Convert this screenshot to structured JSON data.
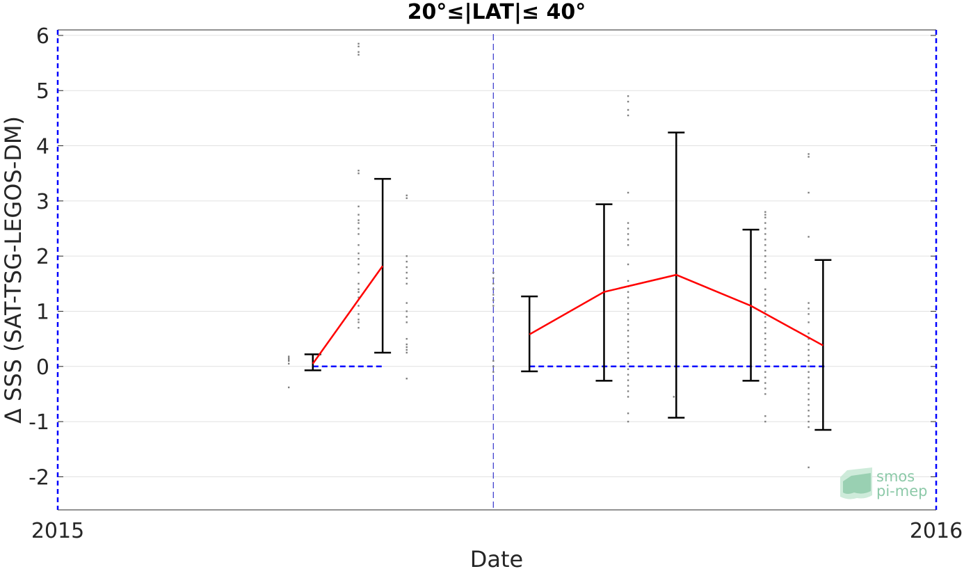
{
  "chart_data": {
    "type": "scatter",
    "title": "20°≤|LAT|≤ 40°",
    "xlabel": "Date",
    "ylabel": "Δ SSS (SAT-TSG-LEGOS-DM)",
    "xlim": [
      "2015-01-01",
      "2016-01-01"
    ],
    "ylim": [
      -2.6,
      6.1
    ],
    "x_ticks": [
      {
        "date": "2015-01-01",
        "label": "2015"
      },
      {
        "date": "2016-01-01",
        "label": "2016"
      }
    ],
    "y_ticks": [
      {
        "value": 6,
        "label": "6"
      },
      {
        "value": 5,
        "label": "5"
      },
      {
        "value": 4,
        "label": "4"
      },
      {
        "value": 3,
        "label": "3"
      },
      {
        "value": 2,
        "label": "2"
      },
      {
        "value": 1,
        "label": "1"
      },
      {
        "value": 0,
        "label": "0"
      },
      {
        "value": -1,
        "label": "-1"
      },
      {
        "value": -2,
        "label": "-2"
      }
    ],
    "grid": "horizontal",
    "reference_line_date": "2015-07-01",
    "zero_segments": [
      {
        "start": "2015-04-17",
        "end": "2015-05-16"
      },
      {
        "start": "2015-07-16",
        "end": "2015-11-16"
      }
    ],
    "errorbars": [
      {
        "date": "2015-04-17",
        "mean": 0.05,
        "low": -0.07,
        "high": 0.22
      },
      {
        "date": "2015-05-16",
        "mean": 1.82,
        "low": 0.25,
        "high": 3.4
      },
      {
        "date": "2015-07-16",
        "mean": 0.58,
        "low": -0.09,
        "high": 1.27
      },
      {
        "date": "2015-08-16",
        "mean": 1.35,
        "low": -0.26,
        "high": 2.94
      },
      {
        "date": "2015-09-15",
        "mean": 1.66,
        "low": -0.93,
        "high": 4.24
      },
      {
        "date": "2015-10-16",
        "mean": 1.1,
        "low": -0.26,
        "high": 2.48
      },
      {
        "date": "2015-11-15",
        "mean": 0.38,
        "low": -1.15,
        "high": 1.93
      }
    ],
    "scatter_groups": [
      {
        "date": "2015-04-07",
        "values": [
          0.15,
          0.1,
          0.05,
          0.12,
          0.18,
          -0.38
        ]
      },
      {
        "date": "2015-05-06",
        "values": [
          5.85,
          5.8,
          5.7,
          5.65,
          3.55,
          3.5,
          2.9,
          2.75,
          2.65,
          2.6,
          2.5,
          2.4,
          2.2,
          2.05,
          1.95,
          1.85,
          1.7,
          1.5,
          1.4,
          1.35,
          1.25,
          1.1,
          0.95,
          0.85,
          0.8,
          0.7
        ]
      },
      {
        "date": "2015-05-26",
        "values": [
          3.1,
          3.05,
          2.0,
          1.9,
          1.8,
          1.7,
          1.6,
          1.5,
          1.15,
          1.0,
          0.9,
          0.8,
          0.5,
          0.4,
          0.35,
          0.3,
          0.25,
          -0.22
        ]
      },
      {
        "date": "2015-07-01",
        "values": [
          1.7,
          1.6,
          1.5,
          1.4,
          1.3,
          1.2,
          1.1,
          0.1,
          0.0,
          -0.1
        ]
      },
      {
        "date": "2015-08-26",
        "values": [
          4.9,
          4.8,
          4.65,
          4.55,
          3.15,
          2.6,
          2.5,
          2.4,
          2.3,
          2.2,
          1.85,
          1.55,
          1.45,
          1.35,
          1.25,
          1.15,
          1.05,
          0.95,
          0.85,
          0.75,
          0.65,
          0.55,
          0.45,
          0.35,
          0.25,
          0.15,
          0.05,
          -0.05,
          -0.15,
          -0.25,
          -0.35,
          -0.45,
          -0.55,
          -0.85,
          -1.0
        ]
      },
      {
        "date": "2015-09-14",
        "values": [
          -0.55
        ]
      },
      {
        "date": "2015-10-22",
        "values": [
          2.8,
          2.75,
          2.7,
          2.6,
          2.5,
          2.4,
          2.3,
          2.2,
          2.1,
          2.0,
          1.9,
          1.8,
          1.7,
          1.6,
          1.4,
          1.3,
          1.2,
          1.1,
          1.0,
          0.9,
          0.8,
          0.7,
          0.6,
          0.5,
          0.4,
          0.3,
          0.2,
          0.1,
          0.0,
          -0.1,
          -0.2,
          -0.3,
          -0.4,
          -0.5,
          -0.9,
          -1.0
        ]
      },
      {
        "date": "2015-11-09",
        "values": [
          3.85,
          3.8,
          3.15,
          2.35,
          1.15,
          1.05,
          0.95,
          0.8,
          0.6,
          0.5,
          0.4,
          0.3,
          0.2,
          0.1,
          0.0,
          -0.1,
          -0.2,
          -0.3,
          -0.4,
          -0.5,
          -0.6,
          -0.7,
          -0.8,
          -0.9,
          -1.0,
          -1.1,
          -1.83
        ]
      }
    ],
    "colors": {
      "mean_line": "#ff0000",
      "errorbar": "#000000",
      "zero_line": "#0000ff",
      "reference_line": "#3333cc",
      "axis_border": "#0000ff",
      "points": "#7f7f7f",
      "grid": "#e0e0e0"
    },
    "legend": "none"
  },
  "watermark": {
    "line1": "smos",
    "line2": "pi-mep"
  }
}
